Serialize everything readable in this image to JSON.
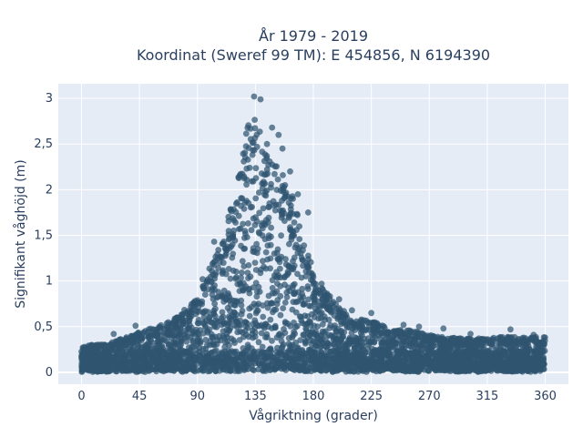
{
  "chart_data": {
    "type": "scatter",
    "title_line1": "År 1979 - 2019",
    "title_line2": "Koordinat (Sweref 99 TM): E 454856, N 6194390",
    "xlabel": "Vågriktning (grader)",
    "ylabel": "Signifikant våghöjd (m)",
    "xlim": [
      -18,
      378
    ],
    "ylim": [
      -0.13,
      3.16
    ],
    "xticks": [
      0,
      45,
      90,
      135,
      180,
      225,
      270,
      315,
      360
    ],
    "yticks": [
      {
        "value": 0,
        "label": "0"
      },
      {
        "value": 0.5,
        "label": "0,5"
      },
      {
        "value": 1,
        "label": "1"
      },
      {
        "value": 1.5,
        "label": "1,5"
      },
      {
        "value": 2,
        "label": "2"
      },
      {
        "value": 2.5,
        "label": "2,5"
      },
      {
        "value": 3,
        "label": "3"
      }
    ],
    "grid": true,
    "marker_color": "#2f5570",
    "plot_bg": "#e5ecf6",
    "envelope": [
      {
        "x": 0,
        "ymax": 0.3
      },
      {
        "x": 20,
        "ymax": 0.32
      },
      {
        "x": 45,
        "ymax": 0.45
      },
      {
        "x": 70,
        "ymax": 0.58
      },
      {
        "x": 90,
        "ymax": 0.85
      },
      {
        "x": 100,
        "ymax": 1.2
      },
      {
        "x": 110,
        "ymax": 1.55
      },
      {
        "x": 120,
        "ymax": 2.05
      },
      {
        "x": 130,
        "ymax": 2.9
      },
      {
        "x": 135,
        "ymax": 3.0
      },
      {
        "x": 145,
        "ymax": 2.4
      },
      {
        "x": 155,
        "ymax": 2.3
      },
      {
        "x": 165,
        "ymax": 1.95
      },
      {
        "x": 175,
        "ymax": 1.35
      },
      {
        "x": 190,
        "ymax": 0.9
      },
      {
        "x": 210,
        "ymax": 0.62
      },
      {
        "x": 225,
        "ymax": 0.58
      },
      {
        "x": 250,
        "ymax": 0.5
      },
      {
        "x": 270,
        "ymax": 0.42
      },
      {
        "x": 300,
        "ymax": 0.38
      },
      {
        "x": 330,
        "ymax": 0.4
      },
      {
        "x": 360,
        "ymax": 0.4
      }
    ],
    "outliers": [
      {
        "x": 134,
        "y": 3.02
      },
      {
        "x": 139,
        "y": 2.99
      },
      {
        "x": 148,
        "y": 2.68
      },
      {
        "x": 153,
        "y": 2.6
      },
      {
        "x": 156,
        "y": 2.45
      },
      {
        "x": 144,
        "y": 2.5
      },
      {
        "x": 162,
        "y": 2.2
      },
      {
        "x": 168,
        "y": 1.95
      },
      {
        "x": 176,
        "y": 1.75
      },
      {
        "x": 60,
        "y": 0.48
      },
      {
        "x": 42,
        "y": 0.51
      },
      {
        "x": 94,
        "y": 1.02
      },
      {
        "x": 103,
        "y": 1.43
      },
      {
        "x": 200,
        "y": 0.8
      },
      {
        "x": 210,
        "y": 0.68
      },
      {
        "x": 225,
        "y": 0.65
      },
      {
        "x": 250,
        "y": 0.52
      },
      {
        "x": 262,
        "y": 0.5
      },
      {
        "x": 281,
        "y": 0.48
      },
      {
        "x": 302,
        "y": 0.42
      },
      {
        "x": 333,
        "y": 0.47
      },
      {
        "x": 351,
        "y": 0.41
      },
      {
        "x": 8,
        "y": 0.3
      },
      {
        "x": 25,
        "y": 0.42
      }
    ]
  }
}
